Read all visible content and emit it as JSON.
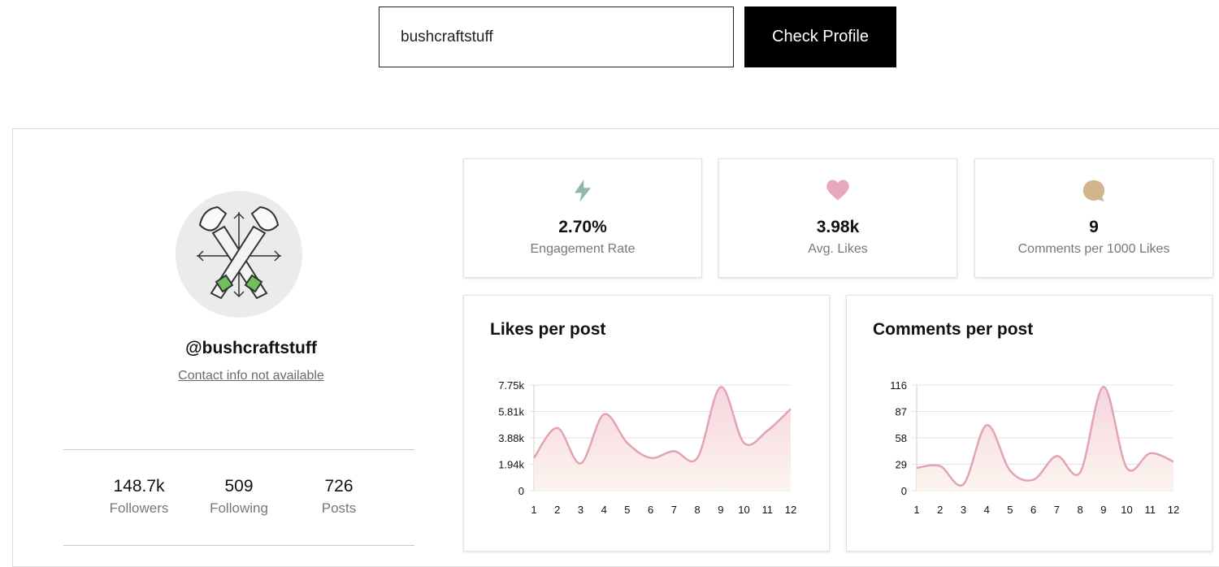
{
  "search": {
    "value": "bushcraftstuff",
    "button_label": "Check Profile"
  },
  "profile": {
    "username": "@bushcraftstuff",
    "contact": "Contact info not available",
    "avatar_icon": "crossed-axes-logo",
    "stats": [
      {
        "value": "148.7k",
        "label": "Followers"
      },
      {
        "value": "509",
        "label": "Following"
      },
      {
        "value": "726",
        "label": "Posts"
      }
    ]
  },
  "metrics": [
    {
      "icon": "lightning-icon",
      "color": "#8fb8a8",
      "value": "2.70%",
      "label": "Engagement Rate"
    },
    {
      "icon": "heart-icon",
      "color": "#e8a8bb",
      "value": "3.98k",
      "label": "Avg. Likes"
    },
    {
      "icon": "comment-icon",
      "color": "#d4b48c",
      "value": "9",
      "label": "Comments per 1000 Likes"
    }
  ],
  "colors": {
    "line": "#e2a3b6",
    "fill_top": "#f4d0db",
    "fill_bottom": "#fdf3ec",
    "grid": "#e3e3e3"
  },
  "chart_data": [
    {
      "type": "area",
      "title": "Likes per post",
      "x": [
        1,
        2,
        3,
        4,
        5,
        6,
        7,
        8,
        9,
        10,
        11,
        12
      ],
      "values": [
        2400,
        4600,
        2000,
        5600,
        3500,
        2400,
        2900,
        2400,
        7600,
        3500,
        4400,
        6000
      ],
      "yticks": [
        "0",
        "1.94k",
        "3.88k",
        "5.81k",
        "7.75k"
      ],
      "ytick_values": [
        0,
        1940,
        3880,
        5810,
        7750
      ],
      "ylim": [
        0,
        7750
      ],
      "grid": true
    },
    {
      "type": "area",
      "title": "Comments per post",
      "x": [
        1,
        2,
        3,
        4,
        5,
        6,
        7,
        8,
        9,
        10,
        11,
        12
      ],
      "values": [
        25,
        27,
        7,
        72,
        22,
        12,
        38,
        20,
        114,
        25,
        41,
        32
      ],
      "yticks": [
        "0",
        "29",
        "58",
        "87",
        "116"
      ],
      "ytick_values": [
        0,
        29,
        58,
        87,
        116
      ],
      "ylim": [
        0,
        116
      ],
      "grid": true
    }
  ]
}
